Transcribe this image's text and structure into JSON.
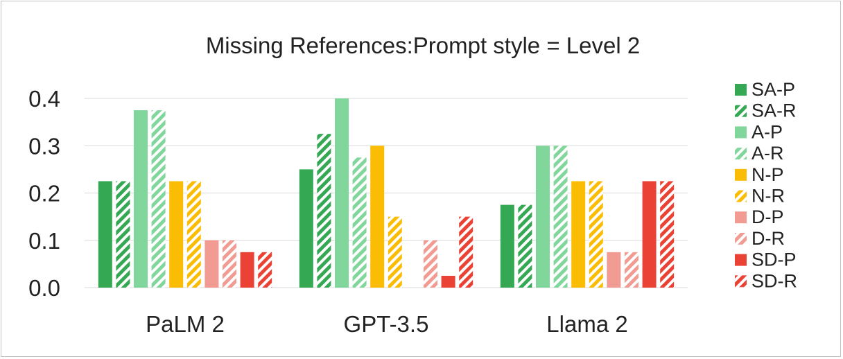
{
  "chart_data": {
    "type": "bar",
    "title": "Missing References:Prompt style = Level 2",
    "xlabel": "",
    "ylabel": "",
    "categories": [
      "PaLM 2",
      "GPT-3.5",
      "Llama 2"
    ],
    "ylim": [
      0,
      0.4
    ],
    "yticks": [
      "0.0",
      "0.1",
      "0.2",
      "0.3",
      "0.4"
    ],
    "ytick_values": [
      0,
      0.1,
      0.2,
      0.3,
      0.4
    ],
    "grid": true,
    "legend_position": "right",
    "series": [
      {
        "name": "SA-P",
        "color": "#34a853",
        "pattern": "solid",
        "values": [
          0.225,
          0.25,
          0.175
        ]
      },
      {
        "name": "SA-R",
        "color": "#34a853",
        "pattern": "hatch",
        "values": [
          0.225,
          0.325,
          0.175
        ]
      },
      {
        "name": "A-P",
        "color": "#81d69b",
        "pattern": "solid",
        "values": [
          0.375,
          0.4,
          0.3
        ]
      },
      {
        "name": "A-R",
        "color": "#81d69b",
        "pattern": "hatch",
        "values": [
          0.375,
          0.275,
          0.3
        ]
      },
      {
        "name": "N-P",
        "color": "#fbbc04",
        "pattern": "solid",
        "values": [
          0.225,
          0.3,
          0.225
        ]
      },
      {
        "name": "N-R",
        "color": "#fbbc04",
        "pattern": "hatch",
        "values": [
          0.225,
          0.15,
          0.225
        ]
      },
      {
        "name": "D-P",
        "color": "#f29b93",
        "pattern": "solid",
        "values": [
          0.1,
          0.0,
          0.075
        ]
      },
      {
        "name": "D-R",
        "color": "#f29b93",
        "pattern": "hatch",
        "values": [
          0.1,
          0.1,
          0.075
        ]
      },
      {
        "name": "SD-P",
        "color": "#ea4335",
        "pattern": "solid",
        "values": [
          0.075,
          0.025,
          0.225
        ]
      },
      {
        "name": "SD-R",
        "color": "#ea4335",
        "pattern": "hatch",
        "values": [
          0.075,
          0.15,
          0.225
        ]
      }
    ]
  }
}
